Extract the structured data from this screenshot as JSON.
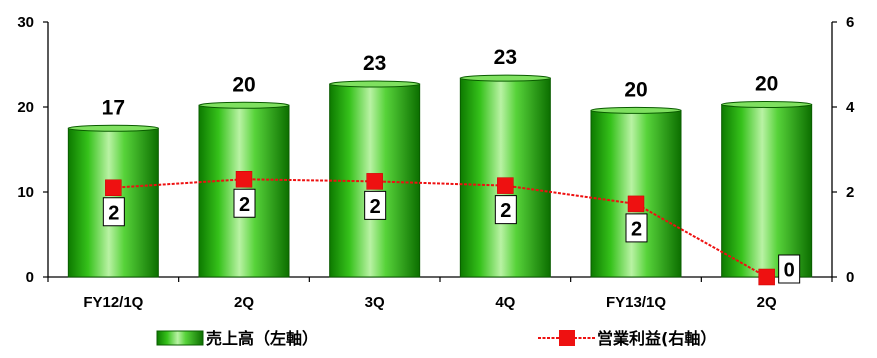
{
  "chart_data": {
    "type": "bar",
    "categories": [
      "FY12/1Q",
      "2Q",
      "3Q",
      "4Q",
      "FY13/1Q",
      "2Q"
    ],
    "series": [
      {
        "name": "売上高（左軸）",
        "type": "bar",
        "axis": "left",
        "values": [
          17.5,
          20.2,
          22.7,
          23.4,
          19.6,
          20.3
        ],
        "labels": [
          "17",
          "20",
          "23",
          "23",
          "20",
          "20"
        ],
        "color": "#22b10a"
      },
      {
        "name": "営業利益(右軸）",
        "type": "line",
        "axis": "right",
        "values": [
          2.1,
          2.3,
          2.25,
          2.15,
          1.72,
          0.0
        ],
        "labels": [
          "2",
          "2",
          "2",
          "2",
          "2",
          "0"
        ],
        "color": "#ee1111"
      }
    ],
    "ylim_left": [
      0,
      30
    ],
    "yticks_left": [
      "0",
      "10",
      "20",
      "30"
    ],
    "ylim_right": [
      0,
      6
    ],
    "yticks_right": [
      "0",
      "2",
      "4",
      "6"
    ],
    "legend_placement": "bottom",
    "grid": false
  }
}
